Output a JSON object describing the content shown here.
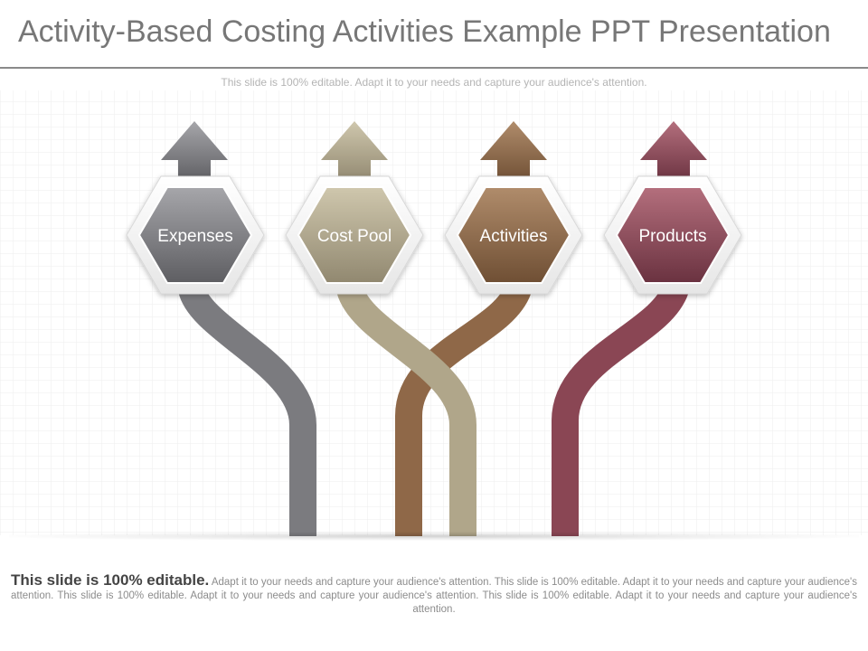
{
  "slide": {
    "title": "Activity-Based Costing Activities Example PPT Presentation",
    "subtitle": "This slide is 100% editable. Adapt it to your needs and capture your audience's attention.",
    "footer_lead": "This slide is 100% editable.",
    "footer_text": "Adapt it to your needs and capture your audience's attention. This slide is 100% editable. Adapt it to your needs and capture your audience's attention. This slide is 100% editable. Adapt it to your needs and capture your audience's attention. This slide is 100% editable. Adapt it to your needs and capture your audience's attention."
  },
  "flow": [
    {
      "label": "Expenses",
      "color": "#7b7b7f",
      "light": "#a6a6aa",
      "dark": "#5e5e62"
    },
    {
      "label": "Cost Pool",
      "color": "#b0a68a",
      "light": "#cfc7ad",
      "dark": "#918870"
    },
    {
      "label": "Activities",
      "color": "#8f6848",
      "light": "#b08c6b",
      "dark": "#6f4f34"
    },
    {
      "label": "Products",
      "color": "#8a4654",
      "light": "#b46f7d",
      "dark": "#6a3240"
    }
  ]
}
